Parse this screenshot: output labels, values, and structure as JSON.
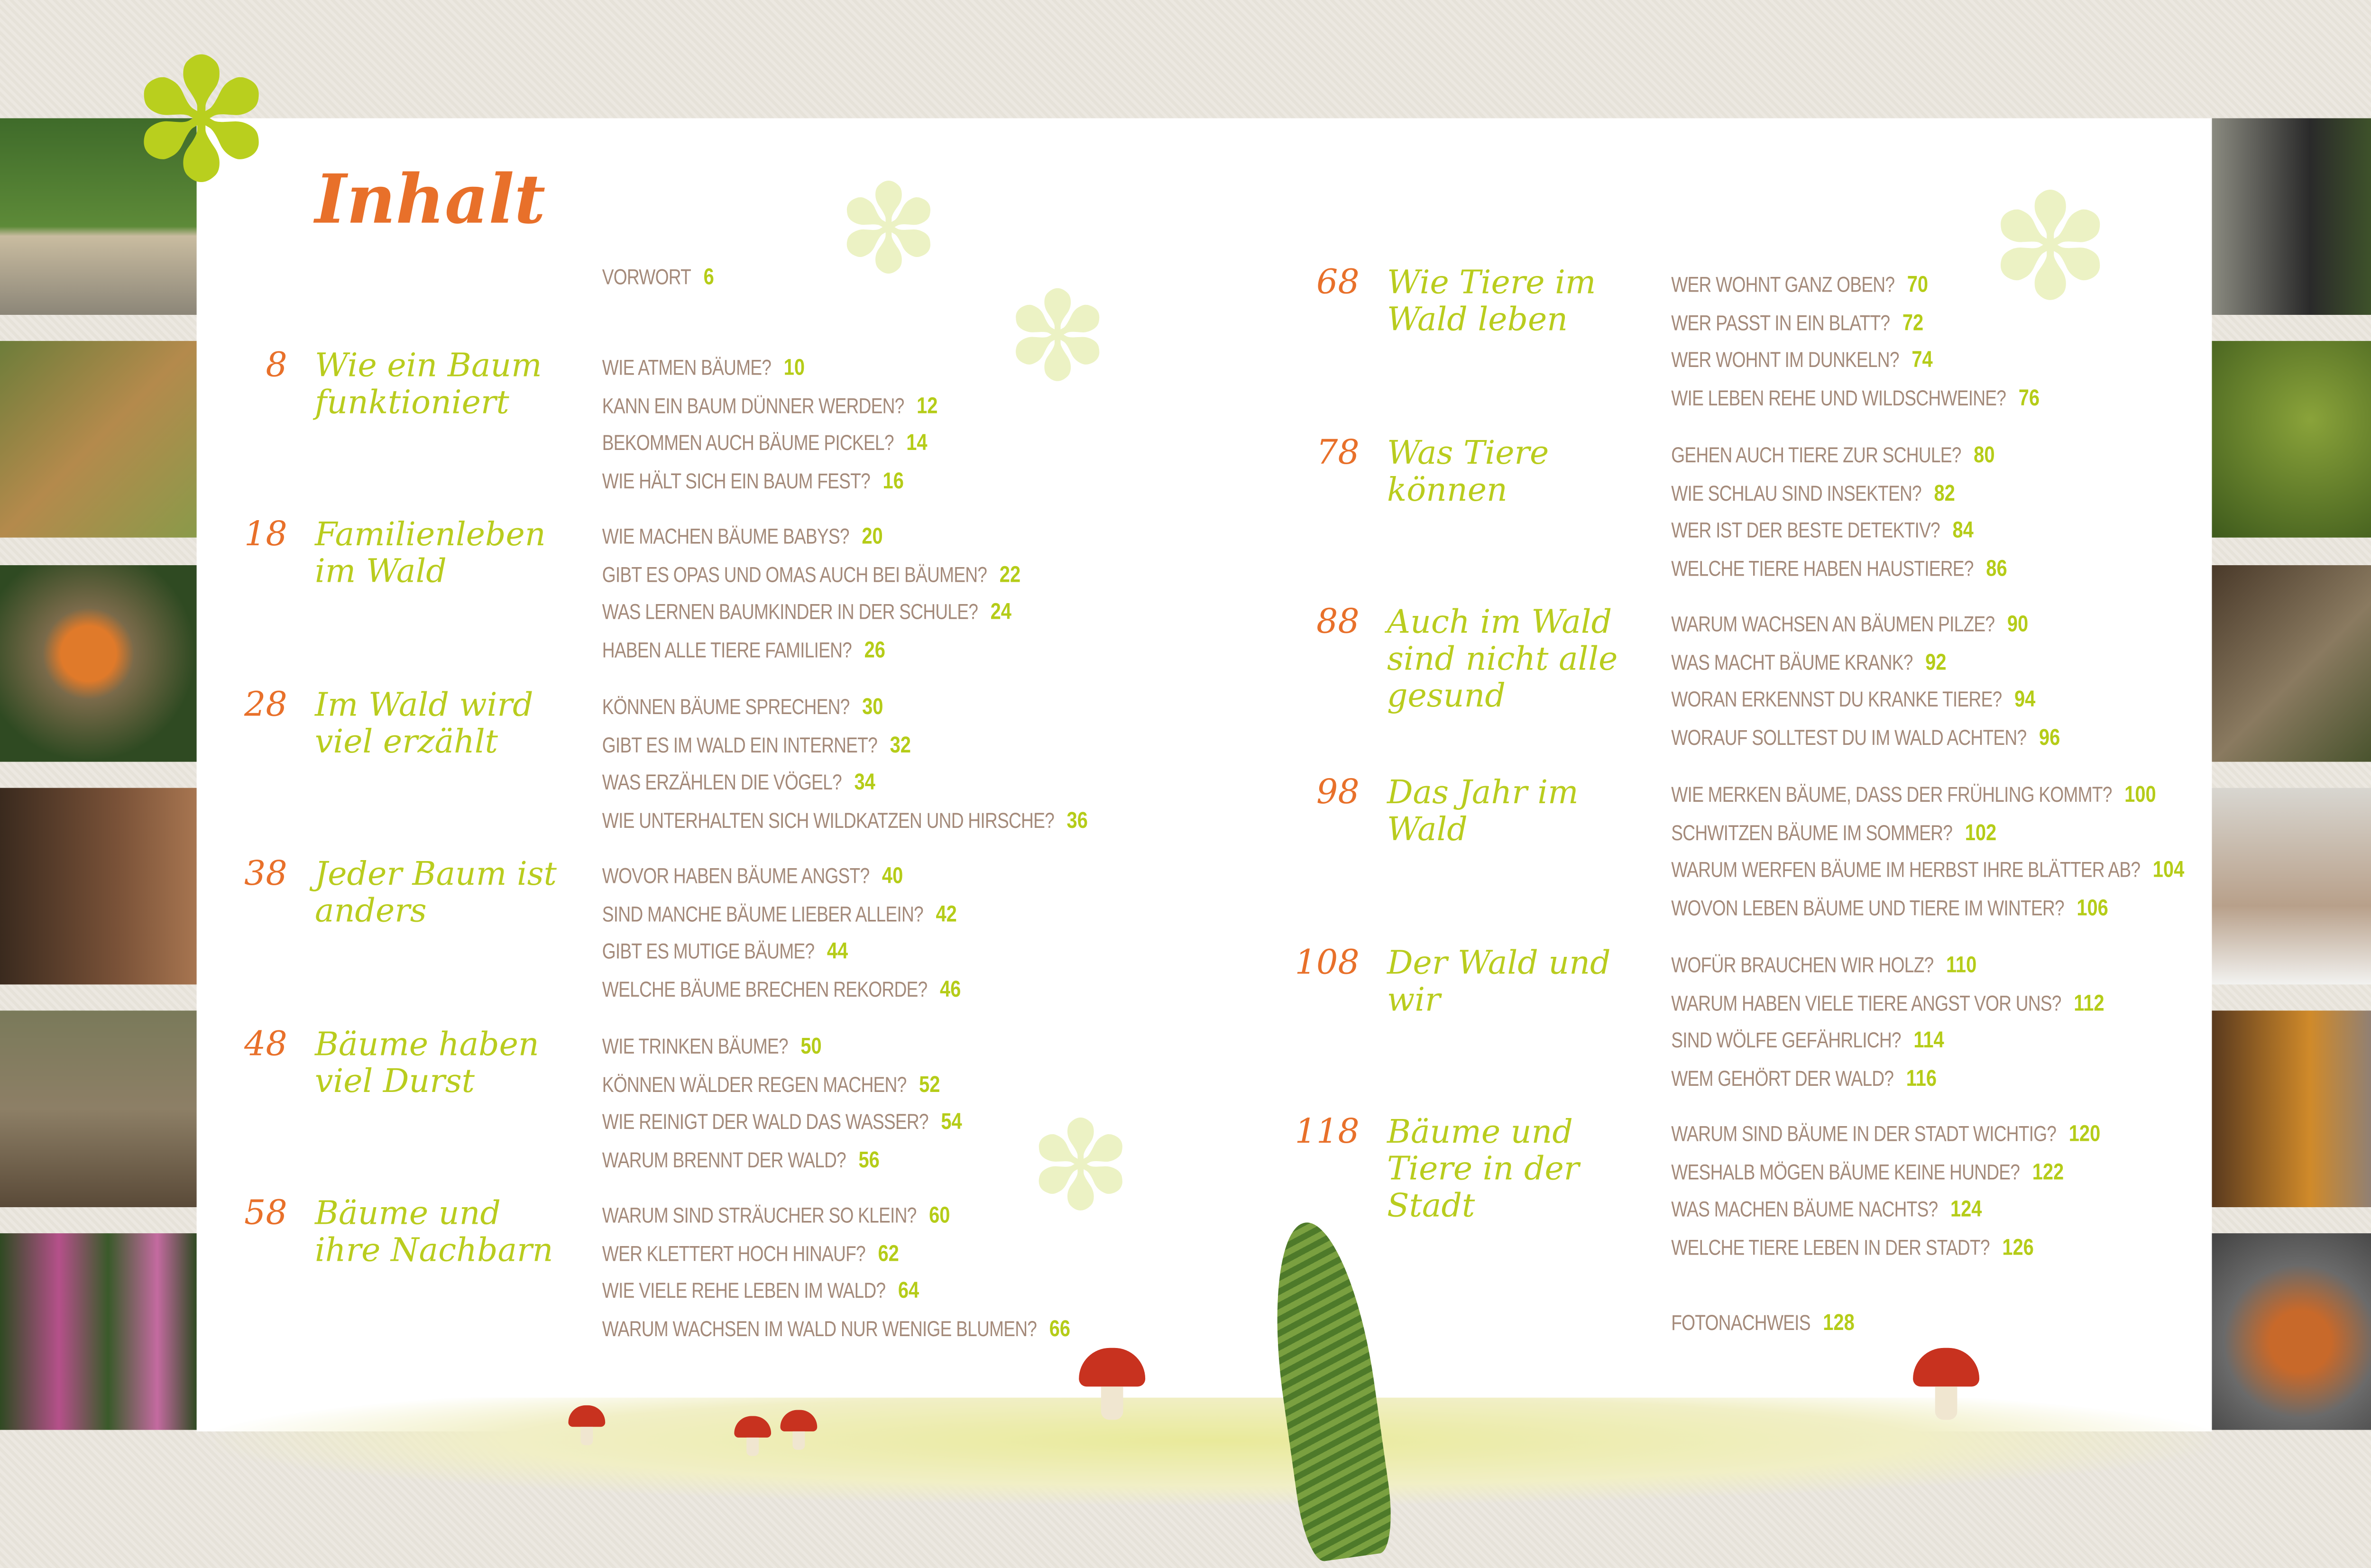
{
  "title": "Inhalt",
  "colors": {
    "accent_orange": "#e8702a",
    "accent_green": "#b5cc18",
    "question_text": "#a48a7a"
  },
  "foreword": {
    "label": "VORWORT",
    "page": "6"
  },
  "chapters": [
    {
      "num": "8",
      "title": "Wie ein Baum funktioniert",
      "questions": [
        {
          "q": "WIE ATMEN BÄUME?",
          "p": "10"
        },
        {
          "q": "KANN EIN BAUM DÜNNER WERDEN?",
          "p": "12"
        },
        {
          "q": "BEKOMMEN AUCH BÄUME PICKEL?",
          "p": "14"
        },
        {
          "q": "WIE HÄLT SICH EIN BAUM FEST?",
          "p": "16"
        }
      ]
    },
    {
      "num": "18",
      "title": "Familienleben im Wald",
      "questions": [
        {
          "q": "WIE MACHEN BÄUME BABYS?",
          "p": "20"
        },
        {
          "q": "GIBT ES OPAS UND OMAS AUCH BEI BÄUMEN?",
          "p": "22"
        },
        {
          "q": "WAS LERNEN BAUMKINDER IN DER SCHULE?",
          "p": "24"
        },
        {
          "q": "HABEN ALLE TIERE FAMILIEN?",
          "p": "26"
        }
      ]
    },
    {
      "num": "28",
      "title": "Im Wald wird viel erzählt",
      "questions": [
        {
          "q": "KÖNNEN BÄUME SPRECHEN?",
          "p": "30"
        },
        {
          "q": "GIBT ES IM WALD EIN INTERNET?",
          "p": "32"
        },
        {
          "q": "WAS ERZÄHLEN DIE VÖGEL?",
          "p": "34"
        },
        {
          "q": "WIE UNTERHALTEN SICH WILDKATZEN UND HIRSCHE?",
          "p": "36"
        }
      ]
    },
    {
      "num": "38",
      "title": "Jeder Baum ist anders",
      "questions": [
        {
          "q": "WOVOR HABEN BÄUME ANGST?",
          "p": "40"
        },
        {
          "q": "SIND MANCHE BÄUME LIEBER ALLEIN?",
          "p": "42"
        },
        {
          "q": "GIBT ES MUTIGE BÄUME?",
          "p": "44"
        },
        {
          "q": "WELCHE BÄUME BRECHEN REKORDE?",
          "p": "46"
        }
      ]
    },
    {
      "num": "48",
      "title": "Bäume haben viel Durst",
      "questions": [
        {
          "q": "WIE TRINKEN BÄUME?",
          "p": "50"
        },
        {
          "q": "KÖNNEN WÄLDER REGEN MACHEN?",
          "p": "52"
        },
        {
          "q": "WIE REINIGT DER WALD DAS WASSER?",
          "p": "54"
        },
        {
          "q": "WARUM BRENNT DER WALD?",
          "p": "56"
        }
      ]
    },
    {
      "num": "58",
      "title": "Bäume und ihre Nachbarn",
      "questions": [
        {
          "q": "WARUM SIND STRÄUCHER SO KLEIN?",
          "p": "60"
        },
        {
          "q": "WER KLETTERT HOCH HINAUF?",
          "p": "62"
        },
        {
          "q": "WIE VIELE REHE LEBEN IM WALD?",
          "p": "64"
        },
        {
          "q": "WARUM WACHSEN IM WALD NUR WENIGE BLUMEN?",
          "p": "66"
        }
      ]
    },
    {
      "num": "68",
      "title": "Wie Tiere im Wald leben",
      "questions": [
        {
          "q": "WER WOHNT GANZ OBEN?",
          "p": "70"
        },
        {
          "q": "WER PASST IN EIN BLATT?",
          "p": "72"
        },
        {
          "q": "WER WOHNT IM DUNKELN?",
          "p": "74"
        },
        {
          "q": "WIE LEBEN REHE UND WILDSCHWEINE?",
          "p": "76"
        }
      ]
    },
    {
      "num": "78",
      "title": "Was Tiere können",
      "questions": [
        {
          "q": "GEHEN AUCH TIERE ZUR SCHULE?",
          "p": "80"
        },
        {
          "q": "WIE SCHLAU SIND INSEKTEN?",
          "p": "82"
        },
        {
          "q": "WER IST DER BESTE DETEKTIV?",
          "p": "84"
        },
        {
          "q": "WELCHE TIERE HABEN HAUSTIERE?",
          "p": "86"
        }
      ]
    },
    {
      "num": "88",
      "title": "Auch im Wald sind nicht alle gesund",
      "questions": [
        {
          "q": "WARUM WACHSEN AN BÄUMEN PILZE?",
          "p": "90"
        },
        {
          "q": "WAS MACHT BÄUME KRANK?",
          "p": "92"
        },
        {
          "q": "WORAN ERKENNST DU KRANKE TIERE?",
          "p": "94"
        },
        {
          "q": "WORAUF SOLLTEST DU IM WALD ACHTEN?",
          "p": "96"
        }
      ]
    },
    {
      "num": "98",
      "title": "Das Jahr im Wald",
      "questions": [
        {
          "q": "WIE MERKEN BÄUME, DASS DER FRÜHLING KOMMT?",
          "p": "100"
        },
        {
          "q": "SCHWITZEN BÄUME IM SOMMER?",
          "p": "102"
        },
        {
          "q": "WARUM WERFEN BÄUME IM HERBST IHRE BLÄTTER AB?",
          "p": "104"
        },
        {
          "q": "WOVON LEBEN BÄUME UND TIERE IM WINTER?",
          "p": "106"
        }
      ]
    },
    {
      "num": "108",
      "title": "Der Wald und wir",
      "questions": [
        {
          "q": "WOFÜR BRAUCHEN WIR HOLZ?",
          "p": "110"
        },
        {
          "q": "WARUM HABEN VIELE TIERE ANGST VOR UNS?",
          "p": "112"
        },
        {
          "q": "SIND WÖLFE GEFÄHRLICH?",
          "p": "114"
        },
        {
          "q": "WEM GEHÖRT DER WALD?",
          "p": "116"
        }
      ]
    },
    {
      "num": "118",
      "title": "Bäume und Tiere in der Stadt",
      "questions": [
        {
          "q": "WARUM SIND BÄUME IN DER STADT WICHTIG?",
          "p": "120"
        },
        {
          "q": "WESHALB MÖGEN BÄUME KEINE HUNDE?",
          "p": "122"
        },
        {
          "q": "WAS MACHEN BÄUME NACHTS?",
          "p": "124"
        },
        {
          "q": "WELCHE TIERE LEBEN IN DER STADT?",
          "p": "126"
        }
      ]
    }
  ],
  "photo_credits": {
    "label": "FOTONACHWEIS",
    "page": "128"
  }
}
